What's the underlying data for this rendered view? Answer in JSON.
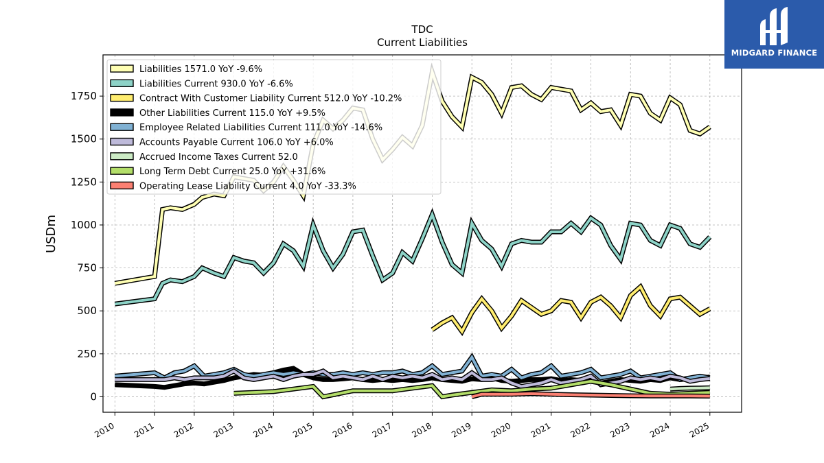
{
  "brand": {
    "name": "MIDGARD FINANCE",
    "color": "#2b5bab"
  },
  "chart_data": {
    "type": "line",
    "title": "TDC",
    "subtitle": "Current  Liabilities",
    "ylabel": "USDm",
    "xlabel": "",
    "xlim": [
      2009.7,
      2025.8
    ],
    "ylim": [
      -90,
      1990
    ],
    "y_ticks": [
      0,
      250,
      500,
      750,
      1000,
      1250,
      1500,
      1750
    ],
    "x_ticks": [
      2010,
      2011,
      2012,
      2013,
      2014,
      2015,
      2016,
      2017,
      2018,
      2019,
      2020,
      2021,
      2022,
      2023,
      2024,
      2025
    ],
    "grid": true,
    "legend_position": "top-left",
    "series": [
      {
        "name": "Liabilities",
        "legend": "Liabilities  1571.0 YoY -9.6%",
        "color": "#ffffb3",
        "x": [
          2010.0,
          2011.0,
          2011.2,
          2011.4,
          2011.7,
          2012.0,
          2012.2,
          2012.5,
          2012.75,
          2013.0,
          2013.25,
          2013.5,
          2013.75,
          2014.0,
          2014.25,
          2014.5,
          2014.75,
          2015.0,
          2015.25,
          2015.5,
          2015.75,
          2016.0,
          2016.25,
          2016.5,
          2016.75,
          2017.0,
          2017.25,
          2017.5,
          2017.75,
          2018.0,
          2018.25,
          2018.5,
          2018.75,
          2019.0,
          2019.25,
          2019.5,
          2019.75,
          2020.0,
          2020.25,
          2020.5,
          2020.75,
          2021.0,
          2021.25,
          2021.5,
          2021.75,
          2022.0,
          2022.25,
          2022.5,
          2022.75,
          2023.0,
          2023.25,
          2023.5,
          2023.75,
          2024.0,
          2024.25,
          2024.5,
          2024.75,
          2025.0
        ],
        "values": [
          660,
          700,
          1090,
          1100,
          1090,
          1120,
          1160,
          1180,
          1170,
          1280,
          1270,
          1260,
          1200,
          1250,
          1340,
          1260,
          1170,
          1470,
          1610,
          1560,
          1610,
          1680,
          1670,
          1500,
          1380,
          1440,
          1510,
          1460,
          1580,
          1890,
          1720,
          1630,
          1570,
          1860,
          1830,
          1760,
          1650,
          1800,
          1810,
          1760,
          1730,
          1800,
          1790,
          1780,
          1670,
          1710,
          1660,
          1670,
          1580,
          1760,
          1750,
          1650,
          1610,
          1740,
          1700,
          1550,
          1530,
          1571
        ]
      },
      {
        "name": "Liabilities Current",
        "legend": "Liabilities Current  930.0 YoY -6.6%",
        "color": "#8dd3c7",
        "x": [
          2010.0,
          2011.0,
          2011.2,
          2011.4,
          2011.7,
          2012.0,
          2012.2,
          2012.5,
          2012.75,
          2013.0,
          2013.25,
          2013.5,
          2013.75,
          2014.0,
          2014.25,
          2014.5,
          2014.75,
          2015.0,
          2015.25,
          2015.5,
          2015.75,
          2016.0,
          2016.25,
          2016.5,
          2016.75,
          2017.0,
          2017.25,
          2017.5,
          2017.75,
          2018.0,
          2018.25,
          2018.5,
          2018.75,
          2019.0,
          2019.25,
          2019.5,
          2019.75,
          2020.0,
          2020.25,
          2020.5,
          2020.75,
          2021.0,
          2021.25,
          2021.5,
          2021.75,
          2022.0,
          2022.25,
          2022.5,
          2022.75,
          2023.0,
          2023.25,
          2023.5,
          2023.75,
          2024.0,
          2024.25,
          2024.5,
          2024.75,
          2025.0
        ],
        "values": [
          540,
          570,
          660,
          680,
          670,
          700,
          750,
          720,
          700,
          810,
          790,
          780,
          720,
          780,
          890,
          850,
          760,
          1000,
          850,
          750,
          830,
          960,
          970,
          820,
          680,
          720,
          840,
          790,
          920,
          1060,
          900,
          770,
          720,
          1010,
          910,
          860,
          760,
          890,
          910,
          900,
          900,
          960,
          960,
          1010,
          960,
          1040,
          1000,
          880,
          800,
          1010,
          1000,
          910,
          880,
          1000,
          980,
          890,
          870,
          930
        ]
      },
      {
        "name": "Contract With Customer Liability Current",
        "legend": "Contract With Customer Liability Current  512.0 YoY -10.2%",
        "color": "#ffed6f",
        "x": [
          2018.0,
          2018.25,
          2018.5,
          2018.75,
          2019.0,
          2019.25,
          2019.5,
          2019.75,
          2020.0,
          2020.25,
          2020.5,
          2020.75,
          2021.0,
          2021.25,
          2021.5,
          2021.75,
          2022.0,
          2022.25,
          2022.5,
          2022.75,
          2023.0,
          2023.25,
          2023.5,
          2023.75,
          2024.0,
          2024.25,
          2024.5,
          2024.75,
          2025.0
        ],
        "values": [
          390,
          430,
          460,
          380,
          490,
          570,
          500,
          400,
          470,
          560,
          520,
          480,
          500,
          560,
          550,
          460,
          550,
          580,
          530,
          460,
          590,
          640,
          530,
          470,
          570,
          580,
          530,
          480,
          512
        ]
      },
      {
        "name": "Other Liabilities Current",
        "legend": "Other Liabilities Current  115.0 YoY +9.5%",
        "color": "#000000",
        "x": [
          2010.0,
          2011.0,
          2011.25,
          2011.5,
          2011.75,
          2012.0,
          2012.25,
          2012.5,
          2012.75,
          2013.0,
          2013.25,
          2013.5,
          2013.75,
          2014.0,
          2014.25,
          2014.5,
          2014.75,
          2015.0,
          2015.25,
          2015.5,
          2015.75,
          2016.0,
          2016.25,
          2016.5,
          2016.75,
          2017.0,
          2017.25,
          2017.5,
          2017.75,
          2018.0,
          2018.25,
          2018.5,
          2018.75,
          2019.0,
          2019.25,
          2019.5,
          2019.75,
          2020.0,
          2020.25,
          2020.5,
          2020.75,
          2021.0,
          2021.25,
          2021.5,
          2021.75,
          2022.0,
          2022.25,
          2022.5,
          2022.75,
          2023.0,
          2023.25,
          2023.5,
          2023.75,
          2024.0,
          2024.25,
          2024.5,
          2024.75,
          2025.0
        ],
        "values": [
          70,
          60,
          55,
          65,
          75,
          80,
          75,
          85,
          95,
          110,
          120,
          130,
          125,
          140,
          155,
          165,
          130,
          110,
          100,
          100,
          105,
          110,
          100,
          95,
          100,
          95,
          100,
          95,
          100,
          110,
          100,
          95,
          90,
          105,
          100,
          110,
          95,
          90,
          95,
          100,
          100,
          105,
          95,
          100,
          95,
          90,
          80,
          90,
          100,
          95,
          90,
          100,
          95,
          110,
          100,
          105,
          110,
          115
        ]
      },
      {
        "name": "Employee Related Liabilities Current",
        "legend": "Employee Related Liabilities Current  111.0 YoY -14.6%",
        "color": "#80b1d3",
        "x": [
          2010.0,
          2011.0,
          2011.25,
          2011.5,
          2011.75,
          2012.0,
          2012.25,
          2012.5,
          2012.75,
          2013.0,
          2013.25,
          2013.5,
          2013.75,
          2014.0,
          2014.25,
          2014.5,
          2014.75,
          2015.0,
          2015.25,
          2015.5,
          2015.75,
          2016.0,
          2016.25,
          2016.5,
          2016.75,
          2017.0,
          2017.25,
          2017.5,
          2017.75,
          2018.0,
          2018.25,
          2018.5,
          2018.75,
          2019.0,
          2019.25,
          2019.5,
          2019.75,
          2020.0,
          2020.25,
          2020.5,
          2020.75,
          2021.0,
          2021.25,
          2021.5,
          2021.75,
          2022.0,
          2022.25,
          2022.5,
          2022.75,
          2023.0,
          2023.25,
          2023.5,
          2023.75,
          2024.0,
          2024.25,
          2024.5,
          2024.75,
          2025.0
        ],
        "values": [
          120,
          140,
          110,
          140,
          150,
          180,
          120,
          130,
          140,
          160,
          130,
          120,
          130,
          140,
          130,
          140,
          130,
          140,
          130,
          130,
          140,
          130,
          140,
          130,
          140,
          140,
          150,
          130,
          140,
          180,
          130,
          140,
          150,
          230,
          120,
          130,
          120,
          160,
          110,
          130,
          140,
          180,
          120,
          130,
          140,
          160,
          110,
          120,
          130,
          150,
          110,
          120,
          130,
          140,
          100,
          110,
          120,
          111
        ]
      },
      {
        "name": "Accounts Payable Current",
        "legend": "Accounts Payable Current  106.0 YoY +6.0%",
        "color": "#bebada",
        "x": [
          2010.0,
          2011.0,
          2011.25,
          2011.5,
          2011.75,
          2012.0,
          2012.25,
          2012.5,
          2012.75,
          2013.0,
          2013.25,
          2013.5,
          2013.75,
          2014.0,
          2014.25,
          2014.5,
          2014.75,
          2015.0,
          2015.25,
          2015.5,
          2015.75,
          2016.0,
          2016.25,
          2016.5,
          2016.75,
          2017.0,
          2017.25,
          2017.5,
          2017.75,
          2018.0,
          2018.25,
          2018.5,
          2018.75,
          2019.0,
          2019.25,
          2019.5,
          2019.75,
          2020.0,
          2020.25,
          2020.5,
          2020.75,
          2021.0,
          2021.25,
          2021.5,
          2021.75,
          2022.0,
          2022.25,
          2022.5,
          2022.75,
          2023.0,
          2023.25,
          2023.5,
          2023.75,
          2024.0,
          2024.25,
          2024.5,
          2024.75,
          2025.0
        ],
        "values": [
          100,
          100,
          100,
          110,
          100,
          110,
          110,
          110,
          120,
          150,
          110,
          100,
          110,
          120,
          100,
          120,
          130,
          130,
          150,
          110,
          120,
          110,
          100,
          120,
          100,
          120,
          110,
          120,
          110,
          130,
          100,
          110,
          100,
          140,
          100,
          100,
          110,
          80,
          60,
          70,
          80,
          100,
          80,
          90,
          100,
          120,
          70,
          80,
          90,
          110,
          100,
          110,
          100,
          120,
          110,
          90,
          100,
          106
        ]
      },
      {
        "name": "Accrued Income Taxes Current",
        "legend": "Accrued Income Taxes Current  52.0",
        "color": "#ccebc5",
        "x": [
          2024.0,
          2024.25,
          2024.5,
          2024.75,
          2025.0
        ],
        "values": [
          45,
          48,
          50,
          51,
          52
        ]
      },
      {
        "name": "Long Term Debt Current",
        "legend": "Long Term Debt Current  25.0 YoY +31.6%",
        "color": "#b3de69",
        "x": [
          2013.0,
          2014.0,
          2014.5,
          2015.0,
          2015.25,
          2016.0,
          2016.5,
          2017.0,
          2017.5,
          2018.0,
          2018.25,
          2018.5,
          2019.0,
          2019.5,
          2020.0,
          2020.5,
          2021.0,
          2021.5,
          2022.0,
          2022.5,
          2023.0,
          2023.5,
          2024.0,
          2024.5,
          2025.0
        ],
        "values": [
          20,
          30,
          45,
          60,
          0,
          35,
          35,
          35,
          50,
          65,
          0,
          10,
          25,
          40,
          35,
          45,
          50,
          70,
          90,
          70,
          45,
          20,
          15,
          20,
          25
        ]
      },
      {
        "name": "Operating Lease Liability Current",
        "legend": "Operating Lease Liability Current  4.0 YoY -33.3%",
        "color": "#fb8072",
        "x": [
          2019.0,
          2019.25,
          2019.5,
          2020.0,
          2020.5,
          2021.0,
          2021.5,
          2022.0,
          2022.5,
          2023.0,
          2023.5,
          2024.0,
          2024.5,
          2025.0
        ],
        "values": [
          0,
          15,
          15,
          15,
          18,
          15,
          12,
          10,
          8,
          6,
          5,
          5,
          5,
          4
        ]
      }
    ]
  }
}
